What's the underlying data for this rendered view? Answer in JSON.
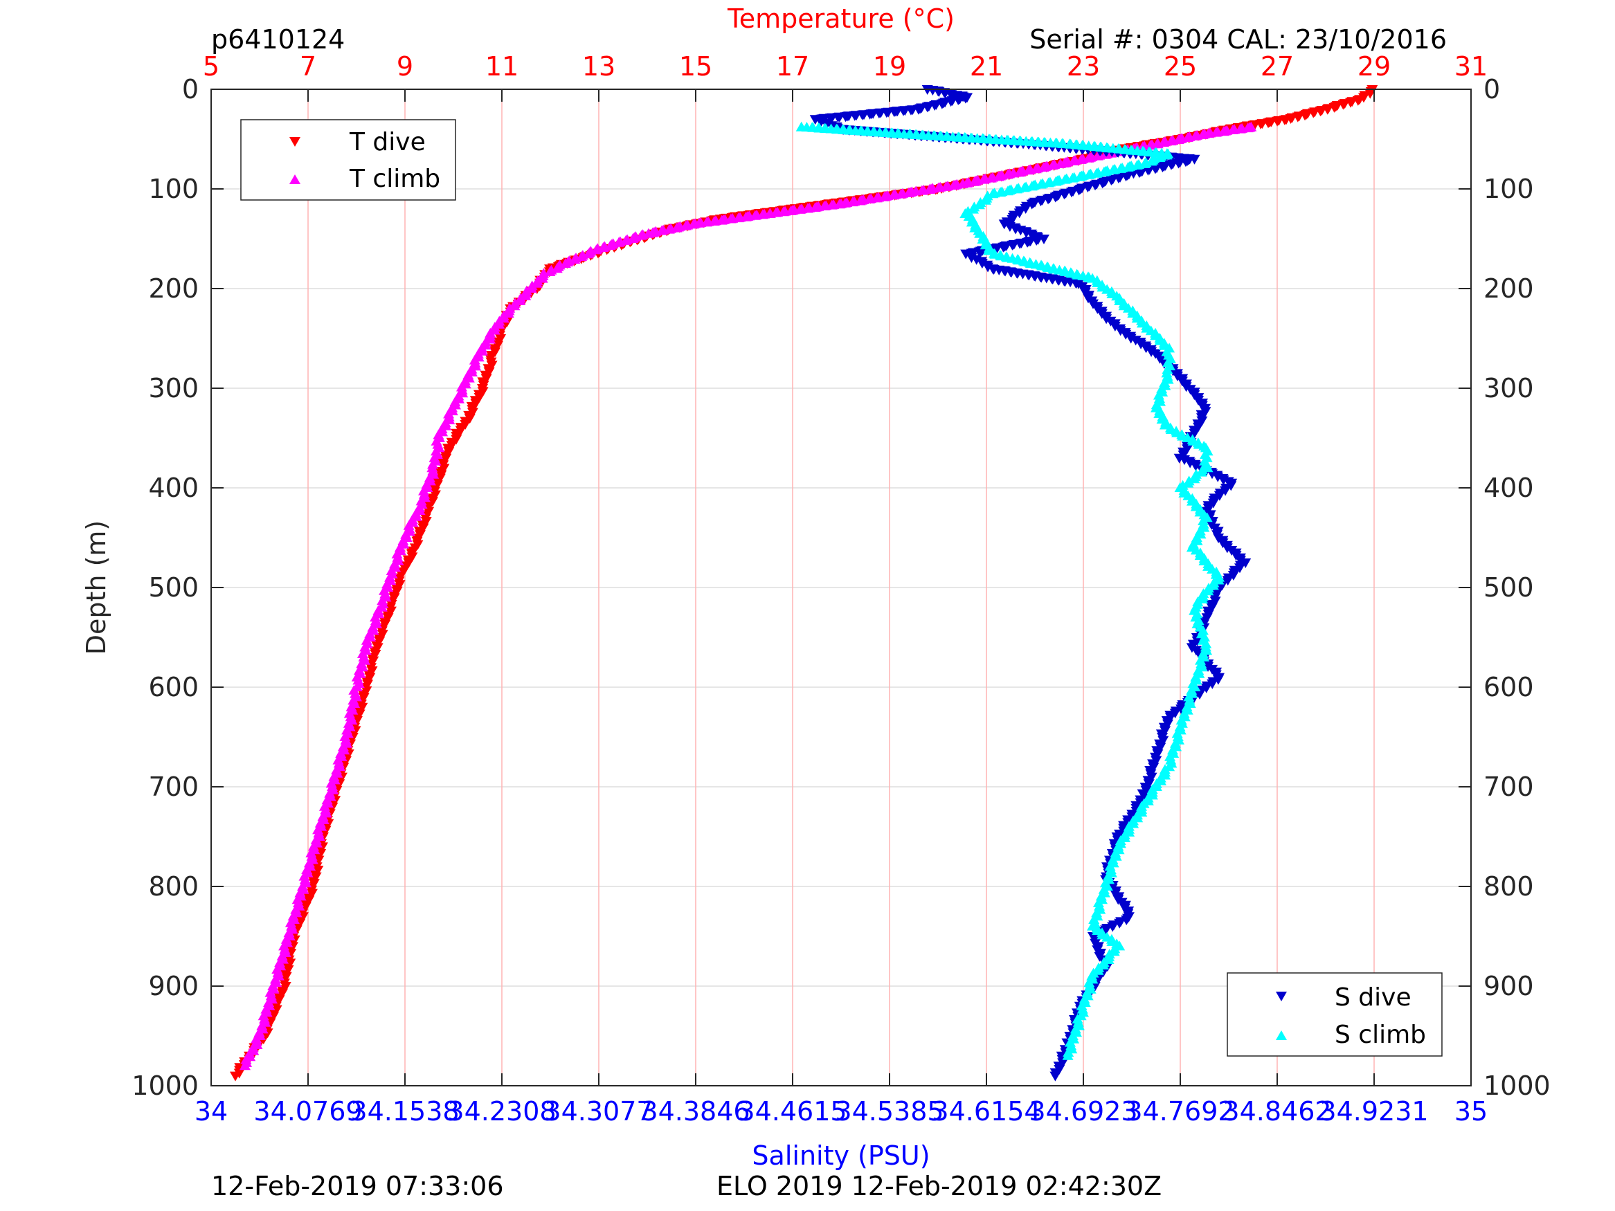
{
  "colors": {
    "temp": "#ff0000",
    "sal": "#0000ff",
    "t_dive": "#ff0000",
    "t_climb": "#ff00ff",
    "s_dive": "#0000cc",
    "s_climb": "#00ffff",
    "grid_temp": "#ffb3b3",
    "grid_depth": "#dddddd",
    "axis": "#262626"
  },
  "header": {
    "id": "p6410124",
    "serial": "Serial #: 0304  CAL: 23/10/2016"
  },
  "footer": {
    "left": "12-Feb-2019 07:33:06",
    "center": "ELO 2019 12-Feb-2019 02:42:30Z"
  },
  "chart_data": {
    "type": "scatter",
    "y_axis": {
      "label": "Depth (m)",
      "range": [
        0,
        1000
      ],
      "reversed": true,
      "ticks": [
        "0",
        "100",
        "200",
        "300",
        "400",
        "500",
        "600",
        "700",
        "800",
        "900",
        "1000"
      ]
    },
    "x_top": {
      "label": "Temperature (°C)",
      "range": [
        5,
        31
      ],
      "ticks": [
        "5",
        "7",
        "9",
        "11",
        "13",
        "15",
        "17",
        "19",
        "21",
        "23",
        "25",
        "27",
        "29",
        "31"
      ]
    },
    "x_bottom": {
      "label": "Salinity (PSU)",
      "range": [
        34,
        35
      ],
      "ticks": [
        "34",
        "34.0769",
        "34.1538",
        "34.2308",
        "34.3077",
        "34.3846",
        "34.4615",
        "34.5385",
        "34.6154",
        "34.6923",
        "34.7692",
        "34.8462",
        "34.9231",
        "35"
      ]
    },
    "grid": true,
    "legend_temp": {
      "placement": "top-left",
      "items": [
        "T dive",
        "T climb"
      ]
    },
    "legend_sal": {
      "placement": "bottom-right",
      "items": [
        "S dive",
        "S climb"
      ]
    },
    "series": [
      {
        "name": "T dive",
        "axis": "temperature",
        "marker": "triangle-down",
        "points": [
          [
            29.0,
            0
          ],
          [
            28.7,
            10
          ],
          [
            28.0,
            20
          ],
          [
            27.2,
            30
          ],
          [
            26.0,
            40
          ],
          [
            25.0,
            50
          ],
          [
            23.8,
            60
          ],
          [
            23.0,
            70
          ],
          [
            22.0,
            80
          ],
          [
            21.0,
            90
          ],
          [
            20.0,
            100
          ],
          [
            18.5,
            110
          ],
          [
            17.0,
            120
          ],
          [
            15.5,
            130
          ],
          [
            14.5,
            140
          ],
          [
            13.5,
            155
          ],
          [
            12.6,
            170
          ],
          [
            12.0,
            180
          ],
          [
            11.7,
            200
          ],
          [
            11.2,
            220
          ],
          [
            11.0,
            240
          ],
          [
            10.8,
            270
          ],
          [
            10.6,
            300
          ],
          [
            10.3,
            330
          ],
          [
            9.9,
            360
          ],
          [
            9.7,
            390
          ],
          [
            9.5,
            420
          ],
          [
            9.2,
            460
          ],
          [
            8.9,
            490
          ],
          [
            8.7,
            520
          ],
          [
            8.4,
            560
          ],
          [
            8.2,
            600
          ],
          [
            7.9,
            650
          ],
          [
            7.6,
            700
          ],
          [
            7.3,
            750
          ],
          [
            7.1,
            800
          ],
          [
            6.7,
            850
          ],
          [
            6.5,
            900
          ],
          [
            6.1,
            950
          ],
          [
            5.5,
            990
          ]
        ]
      },
      {
        "name": "T climb",
        "axis": "temperature",
        "marker": "triangle-up",
        "points": [
          [
            26.5,
            38
          ],
          [
            25.5,
            45
          ],
          [
            24.5,
            55
          ],
          [
            23.5,
            65
          ],
          [
            22.5,
            75
          ],
          [
            21.5,
            85
          ],
          [
            20.5,
            95
          ],
          [
            19.5,
            103
          ],
          [
            18.0,
            115
          ],
          [
            16.5,
            125
          ],
          [
            15.0,
            135
          ],
          [
            14.0,
            145
          ],
          [
            13.0,
            160
          ],
          [
            12.3,
            175
          ],
          [
            11.9,
            185
          ],
          [
            11.5,
            205
          ],
          [
            11.0,
            230
          ],
          [
            10.6,
            260
          ],
          [
            10.3,
            290
          ],
          [
            10.0,
            320
          ],
          [
            9.7,
            350
          ],
          [
            9.6,
            380
          ],
          [
            9.3,
            420
          ],
          [
            9.0,
            450
          ],
          [
            8.7,
            490
          ],
          [
            8.5,
            520
          ],
          [
            8.2,
            560
          ],
          [
            8.0,
            600
          ],
          [
            7.8,
            650
          ],
          [
            7.5,
            700
          ],
          [
            7.2,
            750
          ],
          [
            6.9,
            800
          ],
          [
            6.6,
            850
          ],
          [
            6.3,
            900
          ],
          [
            6.0,
            950
          ],
          [
            5.7,
            980
          ]
        ]
      },
      {
        "name": "S dive",
        "axis": "salinity",
        "marker": "triangle-down",
        "points": [
          [
            34.57,
            0
          ],
          [
            34.6,
            8
          ],
          [
            34.56,
            20
          ],
          [
            34.48,
            30
          ],
          [
            34.5,
            40
          ],
          [
            34.65,
            55
          ],
          [
            34.78,
            70
          ],
          [
            34.73,
            85
          ],
          [
            34.69,
            100
          ],
          [
            34.65,
            115
          ],
          [
            34.63,
            135
          ],
          [
            34.66,
            150
          ],
          [
            34.6,
            165
          ],
          [
            34.62,
            180
          ],
          [
            34.69,
            195
          ],
          [
            34.7,
            215
          ],
          [
            34.72,
            240
          ],
          [
            34.75,
            265
          ],
          [
            34.77,
            290
          ],
          [
            34.79,
            320
          ],
          [
            34.78,
            345
          ],
          [
            34.77,
            370
          ],
          [
            34.81,
            395
          ],
          [
            34.79,
            420
          ],
          [
            34.8,
            450
          ],
          [
            34.82,
            475
          ],
          [
            34.8,
            500
          ],
          [
            34.79,
            530
          ],
          [
            34.78,
            560
          ],
          [
            34.8,
            590
          ],
          [
            34.76,
            630
          ],
          [
            34.75,
            670
          ],
          [
            34.74,
            710
          ],
          [
            34.72,
            750
          ],
          [
            34.71,
            790
          ],
          [
            34.73,
            830
          ],
          [
            34.7,
            850
          ],
          [
            34.71,
            880
          ],
          [
            34.69,
            920
          ],
          [
            34.68,
            960
          ],
          [
            34.67,
            990
          ]
        ]
      },
      {
        "name": "S climb",
        "axis": "salinity",
        "marker": "triangle-up",
        "points": [
          [
            34.47,
            38
          ],
          [
            34.55,
            45
          ],
          [
            34.68,
            55
          ],
          [
            34.76,
            65
          ],
          [
            34.74,
            75
          ],
          [
            34.68,
            90
          ],
          [
            34.62,
            105
          ],
          [
            34.6,
            125
          ],
          [
            34.61,
            145
          ],
          [
            34.62,
            165
          ],
          [
            34.7,
            190
          ],
          [
            34.72,
            210
          ],
          [
            34.74,
            235
          ],
          [
            34.76,
            260
          ],
          [
            34.76,
            285
          ],
          [
            34.75,
            320
          ],
          [
            34.76,
            340
          ],
          [
            34.79,
            360
          ],
          [
            34.79,
            380
          ],
          [
            34.77,
            400
          ],
          [
            34.79,
            430
          ],
          [
            34.78,
            460
          ],
          [
            34.8,
            490
          ],
          [
            34.78,
            520
          ],
          [
            34.79,
            560
          ],
          [
            34.78,
            600
          ],
          [
            34.77,
            640
          ],
          [
            34.76,
            680
          ],
          [
            34.74,
            720
          ],
          [
            34.72,
            760
          ],
          [
            34.71,
            800
          ],
          [
            34.7,
            840
          ],
          [
            34.72,
            860
          ],
          [
            34.7,
            890
          ],
          [
            34.69,
            930
          ],
          [
            34.68,
            970
          ]
        ]
      }
    ]
  }
}
